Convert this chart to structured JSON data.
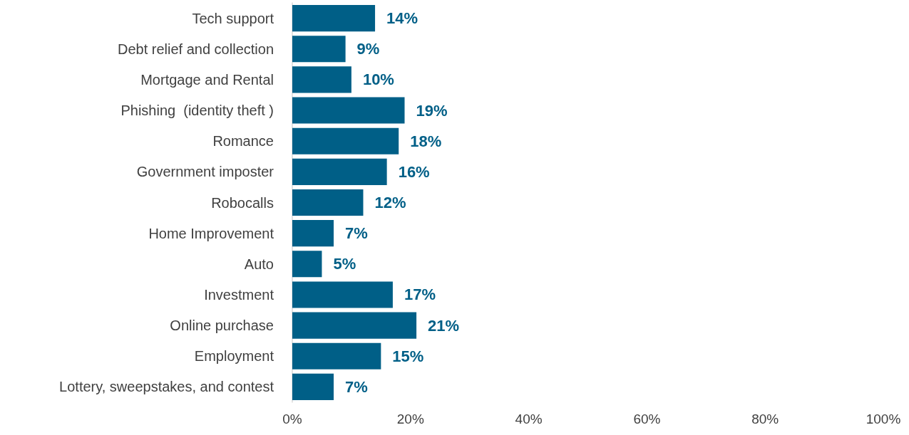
{
  "chart_data": {
    "type": "bar",
    "orientation": "horizontal",
    "categories": [
      "Tech support",
      "Debt relief and collection",
      "Mortgage and Rental",
      "Phishing  (identity theft )",
      "Romance",
      "Government imposter",
      "Robocalls",
      "Home Improvement",
      "Auto",
      "Investment",
      "Online purchase",
      "Employment",
      "Lottery, sweepstakes, and contest"
    ],
    "values": [
      14,
      9,
      10,
      19,
      18,
      16,
      12,
      7,
      5,
      17,
      21,
      15,
      7
    ],
    "value_labels": [
      "14%",
      "9%",
      "10%",
      "19%",
      "18%",
      "16%",
      "12%",
      "7%",
      "5%",
      "17%",
      "21%",
      "15%",
      "7%"
    ],
    "color": "#005f87",
    "xlim": [
      0,
      100
    ],
    "xticks": [
      {
        "value": 0,
        "label": "0%"
      },
      {
        "value": 20,
        "label": "20%"
      },
      {
        "value": 40,
        "label": "40%"
      },
      {
        "value": 60,
        "label": "60%"
      },
      {
        "value": 80,
        "label": "80%"
      },
      {
        "value": 100,
        "label": "100%"
      }
    ],
    "grid": false
  }
}
